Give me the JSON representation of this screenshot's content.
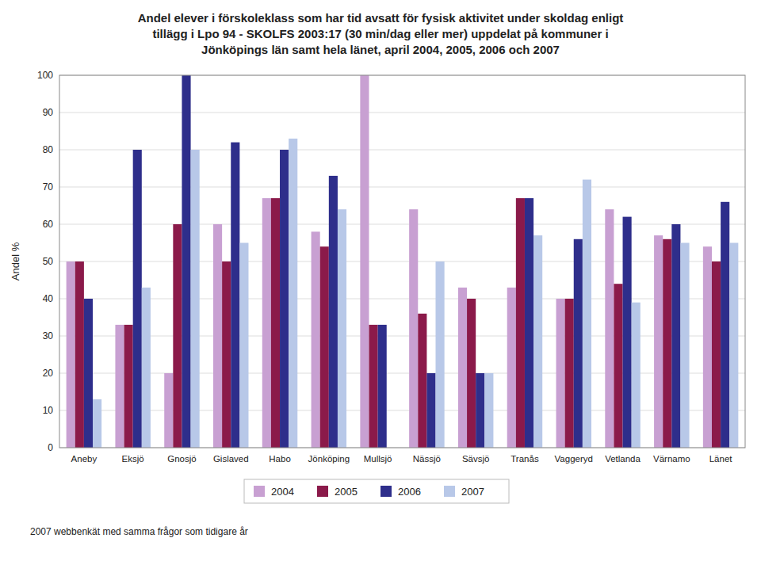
{
  "chart_data": {
    "type": "bar",
    "title": "Andel elever i förskoleklass som har tid avsatt för fysisk aktivitet under skoldag enligt\ntillägg i Lpo 94 - SKOLFS 2003:17  (30 min/dag eller mer)  uppdelat på kommuner i\nJönköpings län samt hela länet, april 2004, 2005, 2006 och 2007",
    "y_label": "Andel %",
    "annotations": [
      "2007 webbenkät med samma frågor som tidigare år"
    ],
    "categories": [
      "Aneby",
      "Eksjö",
      "Gnosjö",
      "Gislaved",
      "Habo",
      "Jönköping",
      "Mullsjö",
      "Nässjö",
      "Sävsjö",
      "Tranås",
      "Vaggeryd",
      "Vetlanda",
      "Värnamo",
      "Länet"
    ],
    "series": [
      {
        "name": "2004",
        "color": "#c8a0d2",
        "values": [
          50,
          33,
          20,
          60,
          67,
          58,
          100,
          64,
          43,
          43,
          40,
          64,
          57,
          54
        ]
      },
      {
        "name": "2005",
        "color": "#8b1a4a",
        "values": [
          50,
          33,
          60,
          50,
          67,
          54,
          33,
          36,
          40,
          67,
          40,
          44,
          56,
          50
        ]
      },
      {
        "name": "2006",
        "color": "#2e2e8b",
        "values": [
          40,
          80,
          100,
          82,
          80,
          73,
          33,
          20,
          20,
          67,
          56,
          62,
          60,
          66
        ]
      },
      {
        "name": "2007",
        "color": "#b8c8e8",
        "values": [
          13,
          43,
          80,
          55,
          83,
          64,
          null,
          50,
          20,
          57,
          72,
          39,
          55,
          55
        ]
      }
    ],
    "ylim": [
      0,
      100
    ],
    "yticks": [
      0,
      10,
      20,
      30,
      40,
      50,
      60,
      70,
      80,
      90,
      100
    ],
    "grid": true,
    "legend": "bottom"
  }
}
